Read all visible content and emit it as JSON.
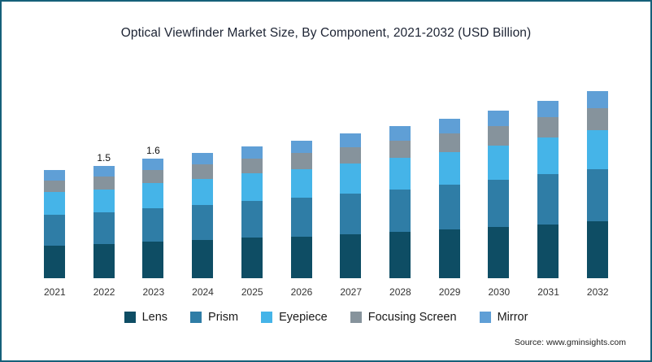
{
  "title": "Optical Viewfinder Market Size, By Component, 2021-2032 (USD Billion)",
  "source": "Source: www.gminsights.com",
  "chart_data": {
    "type": "bar",
    "stacked": true,
    "title": "Optical Viewfinder Market Size, By Component, 2021-2032 (USD Billion)",
    "xlabel": "",
    "ylabel": "",
    "ylim": [
      0,
      2.6
    ],
    "grid": false,
    "legend_position": "bottom",
    "categories": [
      "2021",
      "2022",
      "2023",
      "2024",
      "2025",
      "2026",
      "2027",
      "2028",
      "2029",
      "2030",
      "2031",
      "2032"
    ],
    "series": [
      {
        "name": "Lens",
        "color": "#0e4d64",
        "values": [
          0.44,
          0.46,
          0.49,
          0.51,
          0.54,
          0.56,
          0.59,
          0.62,
          0.65,
          0.68,
          0.72,
          0.76
        ]
      },
      {
        "name": "Prism",
        "color": "#2f7da6",
        "values": [
          0.41,
          0.42,
          0.45,
          0.47,
          0.49,
          0.52,
          0.54,
          0.57,
          0.6,
          0.63,
          0.67,
          0.7
        ]
      },
      {
        "name": "Eyepiece",
        "color": "#45b4e8",
        "values": [
          0.3,
          0.31,
          0.33,
          0.35,
          0.37,
          0.38,
          0.4,
          0.42,
          0.44,
          0.46,
          0.49,
          0.52
        ]
      },
      {
        "name": "Focusing Screen",
        "color": "#86939c",
        "values": [
          0.16,
          0.17,
          0.18,
          0.19,
          0.2,
          0.21,
          0.22,
          0.23,
          0.24,
          0.26,
          0.27,
          0.29
        ]
      },
      {
        "name": "Mirror",
        "color": "#5f9fd6",
        "values": [
          0.14,
          0.14,
          0.15,
          0.16,
          0.16,
          0.17,
          0.18,
          0.19,
          0.2,
          0.21,
          0.22,
          0.23
        ]
      }
    ],
    "totals": [
      1.45,
      1.5,
      1.6,
      1.68,
      1.76,
      1.84,
      1.93,
      2.03,
      2.13,
      2.24,
      2.37,
      2.5
    ],
    "totals_labeled": {
      "2022": "1.5",
      "2023": "1.6"
    }
  }
}
